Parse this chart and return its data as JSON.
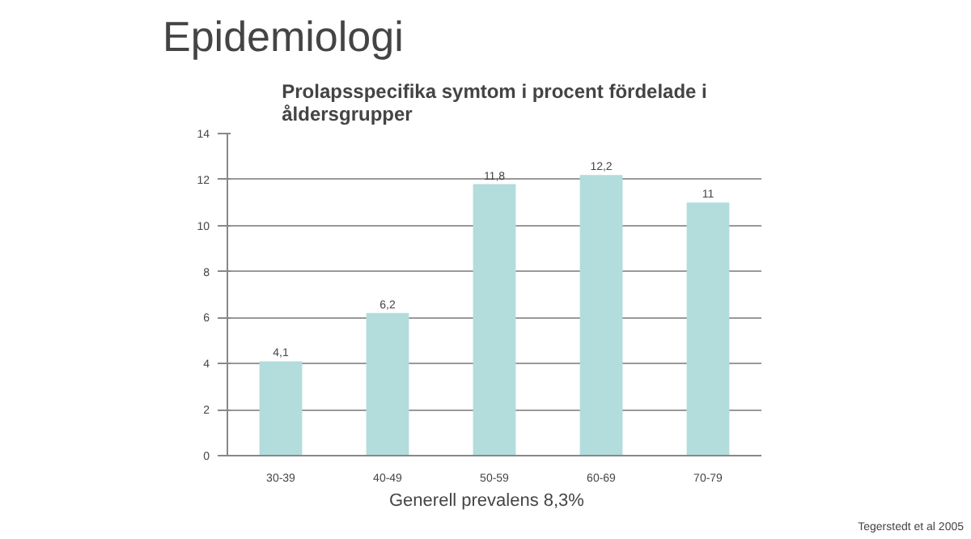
{
  "chart_data": {
    "type": "bar",
    "title": "Epidemiologi",
    "subtitle": "Prolapsspecifika symtom i procent fördelade i\nåldersgrupper",
    "categories": [
      "30-39",
      "40-49",
      "50-59",
      "60-69",
      "70-79"
    ],
    "values": [
      4.1,
      6.2,
      11.8,
      12.2,
      11
    ],
    "value_labels": [
      "4,1",
      "6,2",
      "11,8",
      "12,2",
      "11"
    ],
    "color": "#b3dcdc",
    "ylim": [
      0,
      14
    ],
    "yticks": [
      0,
      2,
      4,
      6,
      8,
      10,
      12,
      14
    ],
    "grid": "y",
    "annotations": [
      "Tegerstedt et al 2005",
      "Generell prevalens  8,3%"
    ]
  }
}
